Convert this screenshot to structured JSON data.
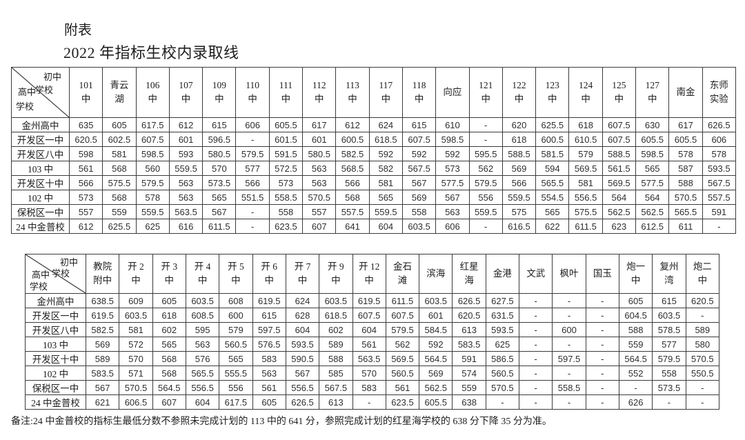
{
  "page": {
    "title1": "附表",
    "title2": "2022 年指标生校内录取线",
    "note": "备注:24 中金普校的指标生最低分数不参照未完成计划的 113 中的 641 分，参照完成计划的红星海学校的 638 分下降 35 分为准。",
    "text_color": "#1e1e1e",
    "border_color": "#3a3a3a",
    "background_color": "#ffffff"
  },
  "diagonal_header": {
    "top_right_line1": "初中",
    "top_right_line2": "学校",
    "bottom_left_line1": "高中",
    "bottom_left_line2": "学校"
  },
  "tables": [
    {
      "name": "indicator-admission-lines-part1",
      "columns": [
        "101\n中",
        "青云\n湖",
        "106\n中",
        "107\n中",
        "109\n中",
        "110\n中",
        "111\n中",
        "112\n中",
        "113\n中",
        "117\n中",
        "118\n中",
        "向应",
        "121\n中",
        "122\n中",
        "123\n中",
        "124\n中",
        "125\n中",
        "127\n中",
        "南金",
        "东师\n实验"
      ],
      "rows": [
        {
          "label": "金州高中",
          "values": [
            "635",
            "605",
            "617.5",
            "612",
            "615",
            "606",
            "605.5",
            "617",
            "612",
            "624",
            "615",
            "610",
            "-",
            "620",
            "625.5",
            "618",
            "607.5",
            "630",
            "617",
            "626.5"
          ]
        },
        {
          "label": "开发区一中",
          "values": [
            "620.5",
            "602.5",
            "607.5",
            "601",
            "596.5",
            "-",
            "601.5",
            "601",
            "600.5",
            "618.5",
            "607.5",
            "598.5",
            "-",
            "618",
            "600.5",
            "610.5",
            "607.5",
            "605.5",
            "605.5",
            "606"
          ]
        },
        {
          "label": "开发区八中",
          "values": [
            "598",
            "581",
            "598.5",
            "593",
            "580.5",
            "579.5",
            "591.5",
            "580.5",
            "582.5",
            "592",
            "592",
            "592",
            "595.5",
            "588.5",
            "581.5",
            "579",
            "588.5",
            "598.5",
            "578",
            "578"
          ]
        },
        {
          "label": "103 中",
          "values": [
            "561",
            "568",
            "560",
            "559.5",
            "570",
            "577",
            "572.5",
            "563",
            "568.5",
            "582",
            "567.5",
            "573",
            "562",
            "569",
            "594",
            "569.5",
            "561.5",
            "565",
            "587",
            "593.5"
          ]
        },
        {
          "label": "开发区十中",
          "values": [
            "566",
            "575.5",
            "579.5",
            "563",
            "573.5",
            "566",
            "573",
            "563",
            "566",
            "581",
            "567",
            "577.5",
            "579.5",
            "566",
            "565.5",
            "581",
            "569.5",
            "577.5",
            "588",
            "567.5"
          ]
        },
        {
          "label": "102 中",
          "values": [
            "573",
            "568",
            "578",
            "563",
            "565",
            "551.5",
            "558.5",
            "570.5",
            "568",
            "565",
            "569",
            "567",
            "556",
            "559.5",
            "554.5",
            "556.5",
            "564",
            "564",
            "570.5",
            "557.5"
          ]
        },
        {
          "label": "保税区一中",
          "values": [
            "557",
            "559",
            "559.5",
            "563.5",
            "567",
            "-",
            "558",
            "557",
            "557.5",
            "559.5",
            "558",
            "563",
            "559.5",
            "575",
            "565",
            "575.5",
            "562.5",
            "562.5",
            "565.5",
            "591"
          ]
        },
        {
          "label": "24 中金普校",
          "values": [
            "612",
            "625.5",
            "625",
            "616",
            "611.5",
            "-",
            "623.5",
            "607",
            "641",
            "604",
            "603.5",
            "606",
            "-",
            "616.5",
            "622",
            "611.5",
            "623",
            "612.5",
            "611",
            "-"
          ]
        }
      ]
    },
    {
      "name": "indicator-admission-lines-part2",
      "columns": [
        "教院\n附中",
        "开 2\n中",
        "开 3\n中",
        "开 4\n中",
        "开 5\n中",
        "开 6\n中",
        "开 7\n中",
        "开 9\n中",
        "开 12\n中",
        "金石\n滩",
        "滨海",
        "红星\n海",
        "金港",
        "文武",
        "枫叶",
        "国玉",
        "炮一\n中",
        "复州\n湾",
        "炮二\n中"
      ],
      "rows": [
        {
          "label": "金州高中",
          "values": [
            "638.5",
            "609",
            "605",
            "603.5",
            "608",
            "619.5",
            "624",
            "603.5",
            "619.5",
            "611.5",
            "603.5",
            "626.5",
            "627.5",
            "-",
            "-",
            "-",
            "605",
            "615",
            "620.5"
          ]
        },
        {
          "label": "开发区一中",
          "values": [
            "619.5",
            "603.5",
            "618",
            "608.5",
            "600",
            "615",
            "628",
            "618.5",
            "607.5",
            "607.5",
            "601",
            "620.5",
            "631.5",
            "-",
            "-",
            "-",
            "604.5",
            "603.5",
            "-"
          ]
        },
        {
          "label": "开发区八中",
          "values": [
            "582.5",
            "581",
            "602",
            "595",
            "579",
            "597.5",
            "604",
            "602",
            "604",
            "579.5",
            "584.5",
            "613",
            "593.5",
            "-",
            "600",
            "-",
            "588",
            "578.5",
            "589"
          ]
        },
        {
          "label": "103 中",
          "values": [
            "569",
            "572",
            "565",
            "563",
            "560.5",
            "576.5",
            "593.5",
            "589",
            "561",
            "562",
            "592",
            "583.5",
            "625",
            "-",
            "-",
            "-",
            "559",
            "577",
            "580"
          ]
        },
        {
          "label": "开发区十中",
          "values": [
            "589",
            "570",
            "568",
            "576",
            "565",
            "583",
            "590.5",
            "588",
            "563.5",
            "569.5",
            "564.5",
            "591",
            "586.5",
            "-",
            "597.5",
            "-",
            "564.5",
            "579.5",
            "570.5"
          ]
        },
        {
          "label": "102 中",
          "values": [
            "583.5",
            "571",
            "568",
            "565.5",
            "555.5",
            "563",
            "567",
            "585",
            "570",
            "560.5",
            "569",
            "574",
            "560.5",
            "-",
            "-",
            "-",
            "552",
            "558",
            "550.5"
          ]
        },
        {
          "label": "保税区一中",
          "values": [
            "567",
            "570.5",
            "564.5",
            "556.5",
            "556",
            "561",
            "556.5",
            "567.5",
            "583",
            "561",
            "562.5",
            "559",
            "570.5",
            "-",
            "558.5",
            "-",
            "-",
            "573.5",
            "-"
          ]
        },
        {
          "label": "24 中金普校",
          "values": [
            "621",
            "606.5",
            "607",
            "604",
            "617.5",
            "605",
            "626.5",
            "613",
            "-",
            "623.5",
            "605.5",
            "638",
            "-",
            "-",
            "-",
            "-",
            "626",
            "-",
            "-"
          ]
        }
      ]
    }
  ]
}
